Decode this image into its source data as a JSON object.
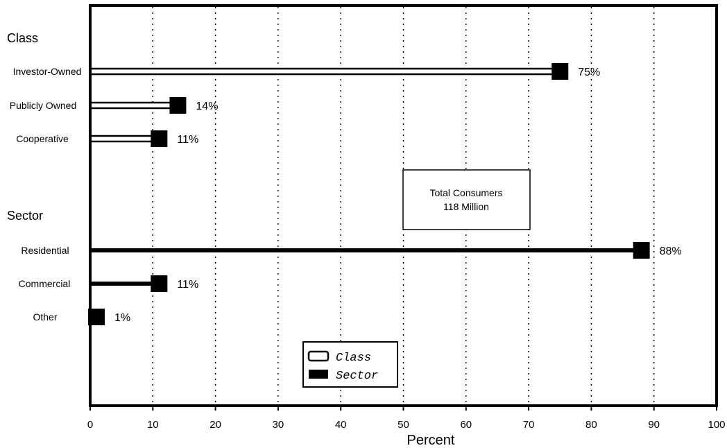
{
  "chart_data": {
    "type": "bar",
    "orientation": "horizontal",
    "title": "",
    "xlabel": "Percent",
    "xlim": [
      0,
      100
    ],
    "xticks": [
      0,
      10,
      20,
      30,
      40,
      50,
      60,
      70,
      80,
      90,
      100
    ],
    "grid": "vertical dotted",
    "groups": [
      {
        "name": "Class",
        "series": "Class",
        "categories": [
          "Investor-Owned",
          "Publicly Owned",
          "Cooperative"
        ],
        "values": [
          75,
          14,
          11
        ],
        "value_labels": [
          "75%",
          "14%",
          "11%"
        ]
      },
      {
        "name": "Sector",
        "series": "Sector",
        "categories": [
          "Residential",
          "Commercial",
          "Other"
        ],
        "values": [
          88,
          11,
          1
        ],
        "value_labels": [
          "88%",
          "11%",
          "1%"
        ]
      }
    ],
    "legend": {
      "placement": "bottom-center",
      "entries": [
        {
          "name": "Class",
          "style": "double-line"
        },
        {
          "name": "Sector",
          "style": "solid"
        }
      ]
    },
    "annotation": {
      "line1": "Total Consumers",
      "line2": "118 Million"
    },
    "colors": {
      "ink": "#000000",
      "background": "#ffffff"
    }
  }
}
